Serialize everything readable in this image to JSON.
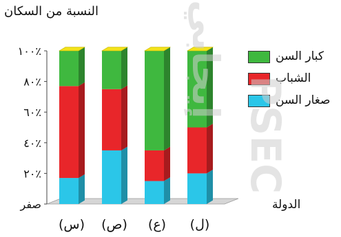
{
  "chart_data": {
    "type": "bar",
    "stacked": true,
    "title": "",
    "ylabel": "النسبة من السكان",
    "xlabel": "الدولة",
    "ylim": [
      0,
      100
    ],
    "yticks": [
      {
        "value": 0,
        "label": "صفر"
      },
      {
        "value": 20,
        "label": "٢٠٪"
      },
      {
        "value": 40,
        "label": "٤٠٪"
      },
      {
        "value": 60,
        "label": "٦٠٪"
      },
      {
        "value": 80,
        "label": "٨٠٪"
      },
      {
        "value": 100,
        "label": "١٠٠٪"
      }
    ],
    "categories": [
      "(س)",
      "(ص)",
      "(ع)",
      "(ل)"
    ],
    "series": [
      {
        "name": "صغار السن",
        "color": "#2bc6e8",
        "values": [
          17,
          35,
          15,
          20
        ]
      },
      {
        "name": "الشباب",
        "color": "#e8262a",
        "values": [
          60,
          40,
          20,
          30
        ]
      },
      {
        "name": "كبار السن",
        "color": "#3fb83f",
        "values": [
          23,
          25,
          65,
          50
        ]
      }
    ],
    "legend_position": "right"
  },
  "watermark": {
    "text": "PSEC",
    "arabic": "إيجابي"
  }
}
